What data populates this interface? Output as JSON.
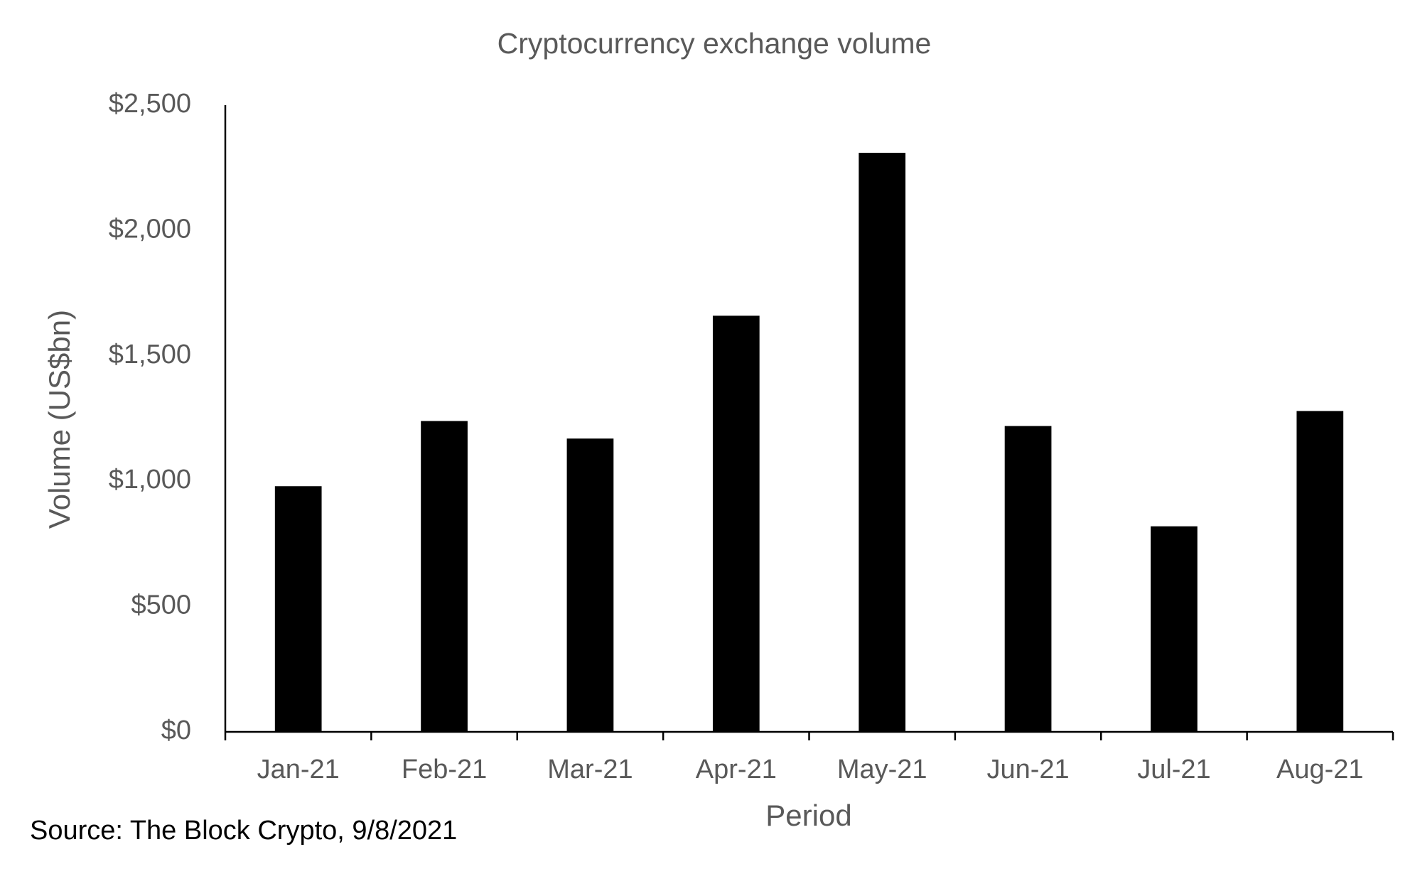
{
  "chart_data": {
    "type": "bar",
    "title": "Cryptocurrency exchange volume",
    "x_label": "Period",
    "y_label": "Volume (US$bn)",
    "note": "Source: The Block Crypto, 9/8/2021",
    "categories": [
      "Jan-21",
      "Feb-21",
      "Mar-21",
      "Apr-21",
      "May-21",
      "Jun-21",
      "Jul-21",
      "Aug-21"
    ],
    "values": [
      980,
      1240,
      1170,
      1660,
      2310,
      1220,
      820,
      1280
    ],
    "color": "#000000",
    "ylim": [
      0,
      2500
    ],
    "yticks": [
      {
        "value": 0,
        "label": "$0"
      },
      {
        "value": 500,
        "label": "$500"
      },
      {
        "value": 1000,
        "label": "$1,000"
      },
      {
        "value": 1500,
        "label": "$1,500"
      },
      {
        "value": 2000,
        "label": "$2,000"
      },
      {
        "value": 2500,
        "label": "$2,500"
      }
    ],
    "grid": false
  }
}
